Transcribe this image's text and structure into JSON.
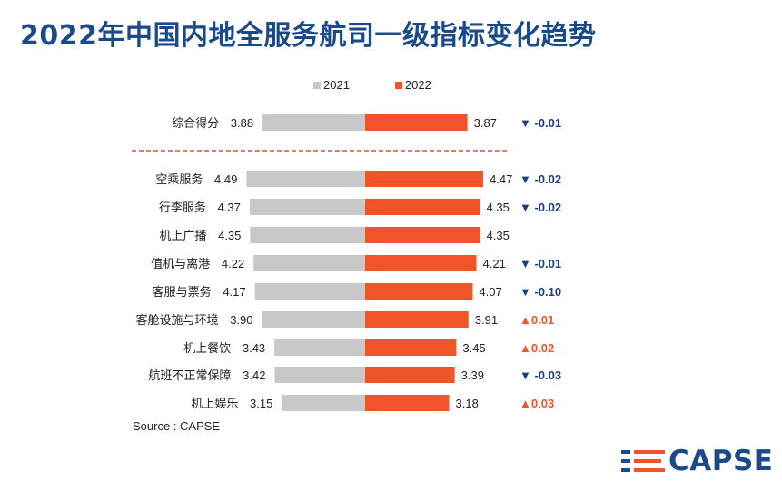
{
  "header": {
    "title": "2022年中国内地全服务航司一级指标变化趋势"
  },
  "colors": {
    "y2021": "#c8c8c8",
    "y2022": "#f0552a",
    "down": "#1b3f7a",
    "up": "#f0552a",
    "divider": "#e0261e",
    "title": "#1b4a8a"
  },
  "chart_data": {
    "type": "bar",
    "orientation": "horizontal-butterfly",
    "title": "2022年中国内地全服务航司一级指标变化趋势",
    "legend": [
      "2021",
      "2022"
    ],
    "legend_position": "top",
    "categories": [
      "综合得分",
      "空乘服务",
      "行李服务",
      "机上广播",
      "值机与离港",
      "客服与票务",
      "客舱设施与环境",
      "机上餐饮",
      "航班不正常保障",
      "机上娱乐"
    ],
    "series": [
      {
        "name": "2021",
        "values": [
          3.88,
          4.49,
          4.37,
          4.35,
          4.22,
          4.17,
          3.9,
          3.43,
          3.42,
          3.15
        ],
        "labels": [
          "3.88",
          "4.49",
          "4.37",
          "4.35",
          "4.22",
          "4.17",
          "3.90",
          "3.43",
          "3.42",
          "3.15"
        ]
      },
      {
        "name": "2022",
        "values": [
          3.87,
          4.47,
          4.35,
          4.35,
          4.21,
          4.07,
          3.91,
          3.45,
          3.39,
          3.18
        ],
        "labels": [
          "3.87",
          "4.47",
          "4.35",
          "4.35",
          "4.21",
          "4.07",
          "3.91",
          "3.45",
          "3.39",
          "3.18"
        ]
      }
    ],
    "changes": [
      {
        "text": "-0.01",
        "direction": "down"
      },
      {
        "text": "-0.02",
        "direction": "down"
      },
      {
        "text": "-0.02",
        "direction": "down"
      },
      {
        "text": "",
        "direction": "none"
      },
      {
        "text": "-0.01",
        "direction": "down"
      },
      {
        "text": "-0.10",
        "direction": "down"
      },
      {
        "text": "0.01",
        "direction": "up"
      },
      {
        "text": "0.02",
        "direction": "up"
      },
      {
        "text": "-0.03",
        "direction": "down"
      },
      {
        "text": "0.03",
        "direction": "up"
      }
    ],
    "annotations": [
      "divider after 综合得分"
    ],
    "source": "Source : CAPSE"
  },
  "footer": {
    "source": "Source : CAPSE",
    "logo_text": "CAPSE"
  },
  "icons": {
    "down": "▼",
    "up": "▲"
  }
}
